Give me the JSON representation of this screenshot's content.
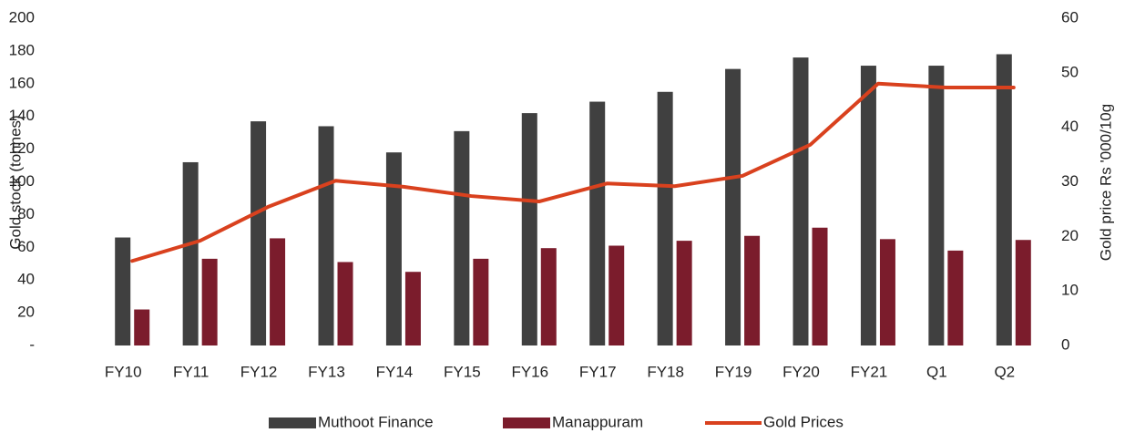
{
  "chart_data": {
    "type": "bar_line",
    "categories": [
      "FY10",
      "FY11",
      "FY12",
      "FY13",
      "FY14",
      "FY15",
      "FY16",
      "FY17",
      "FY18",
      "FY19",
      "FY20",
      "FY21",
      "Q1",
      "Q2"
    ],
    "series": [
      {
        "name": "Muthoot Finance",
        "color": "#404040",
        "type": "bar",
        "values": [
          66,
          112,
          137,
          134,
          118,
          131,
          142,
          149,
          155,
          169,
          176,
          171,
          171,
          178
        ]
      },
      {
        "name": "Manappuram",
        "color": "#7b1c2c",
        "type": "bar",
        "values": [
          22,
          53,
          65.5,
          51,
          45,
          53,
          59.5,
          61,
          64,
          67,
          72,
          65,
          58,
          64.5
        ]
      },
      {
        "name": "Gold Prices",
        "color": "#d9411e",
        "type": "line",
        "axis": "y2",
        "values": [
          15.5,
          19.2,
          25.4,
          30.2,
          29.1,
          27.4,
          26.4,
          29.7,
          29.2,
          31.1,
          36.8,
          48,
          47.3,
          47.3
        ]
      }
    ],
    "ylabel": "Gold stock (tonnes)",
    "y2label": "Gold price Rs '000/10g",
    "ylim": [
      0,
      200
    ],
    "yticks": [
      {
        "value": 0,
        "label": "-"
      },
      20,
      40,
      60,
      80,
      100,
      120,
      140,
      160,
      180,
      200
    ],
    "y2lim": [
      0,
      60
    ],
    "y2ticks": [
      0,
      10,
      20,
      30,
      40,
      50,
      60
    ],
    "legend": "bottom"
  }
}
